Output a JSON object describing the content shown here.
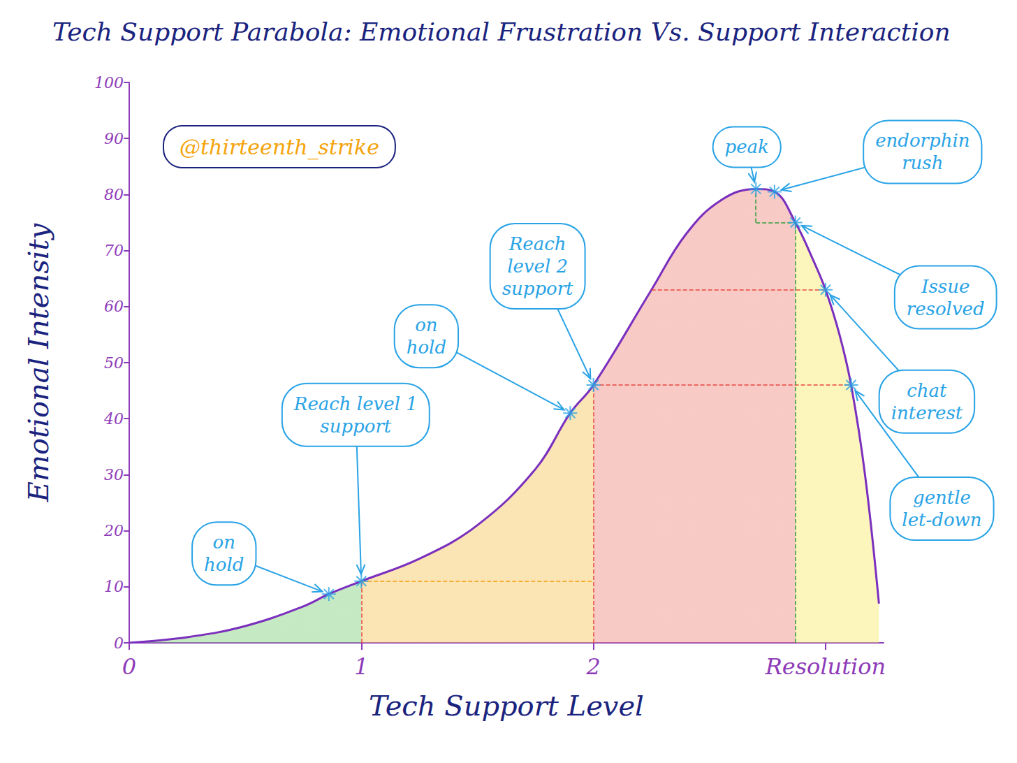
{
  "chart_data": {
    "type": "line",
    "title": "Tech Support Parabola: Emotional Frustration Vs. Support Interaction",
    "x_label": "Tech Support Level",
    "y_label": "Emotional Intensity",
    "tag": "@thirteenth_strike",
    "x": [
      0,
      0.25,
      0.5,
      0.75,
      0.86,
      1.0,
      1.25,
      1.5,
      1.75,
      1.9,
      2.0,
      2.25,
      2.4,
      2.55,
      2.7,
      2.78,
      2.87,
      2.95,
      3.0,
      3.06,
      3.11,
      3.17,
      3.23
    ],
    "values": [
      0,
      1,
      3,
      6.5,
      8.7,
      11,
      15,
      21,
      31,
      41,
      46,
      63,
      73,
      79,
      81,
      80.5,
      75,
      68,
      63,
      55,
      46,
      30,
      7
    ],
    "color": "#7b2fbe",
    "xlim": [
      0,
      3.25
    ],
    "xticks": [
      0,
      1,
      2,
      {
        "value": 3,
        "label": "Resolution"
      }
    ],
    "ylim": [
      0,
      100
    ],
    "yticks": [
      0,
      10,
      20,
      30,
      40,
      50,
      60,
      70,
      80,
      90,
      100
    ],
    "grid": false,
    "annotations": [
      {
        "text": "on\nhold",
        "x": 0.86,
        "y": 8.7
      },
      {
        "text": "Reach level 1\nsupport",
        "x": 1.0,
        "y": 11
      },
      {
        "text": "on\nhold",
        "x": 1.9,
        "y": 41
      },
      {
        "text": "Reach\nlevel 2\nsupport",
        "x": 2.0,
        "y": 46
      },
      {
        "text": "peak",
        "x": 2.7,
        "y": 81
      },
      {
        "text": "endorphin\nrush",
        "x": 2.78,
        "y": 80.5
      },
      {
        "text": "Issue\nresolved",
        "x": 2.87,
        "y": 75
      },
      {
        "text": "chat\ninterest",
        "x": 3.0,
        "y": 63
      },
      {
        "text": "gentle\nlet-down",
        "x": 3.11,
        "y": 46
      }
    ]
  }
}
